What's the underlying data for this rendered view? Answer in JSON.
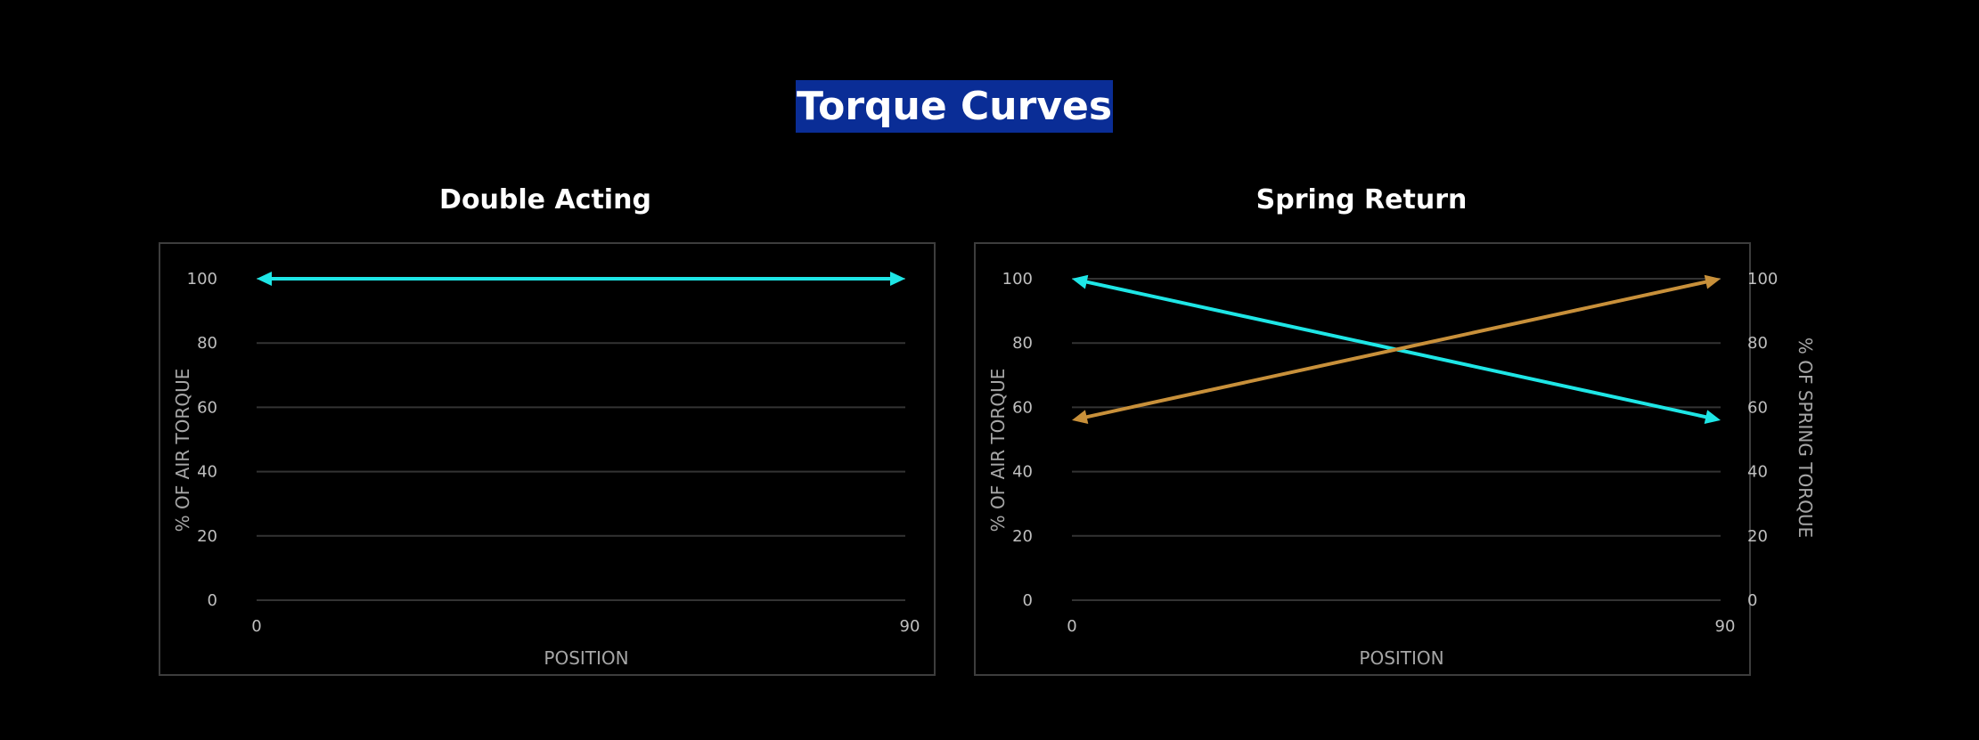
{
  "title": "Torque Curves",
  "colors": {
    "title_bg": "#0a2d96",
    "air_torque": "#1ee6e6",
    "spring_torque": "#c8903a",
    "gridline": "#333333",
    "frame": "#3d3d3d"
  },
  "chart_data": [
    {
      "type": "line",
      "title": "Double Acting",
      "xlabel": "POSITION",
      "ylabel": "% OF AIR TORQUE",
      "xlim": [
        0,
        90
      ],
      "ylim": [
        0,
        100
      ],
      "x_ticks": [
        "0",
        "90"
      ],
      "y_ticks": [
        "0",
        "20",
        "40",
        "60",
        "80",
        "100"
      ],
      "grid": true,
      "arrows": "both-ends",
      "series": [
        {
          "x": [
            0,
            90
          ],
          "y": [
            100,
            100
          ],
          "color": "#1ee6e6",
          "axis": "left"
        }
      ]
    },
    {
      "type": "line",
      "title": "Spring Return",
      "xlabel": "POSITION",
      "ylabel": "% OF AIR TORQUE",
      "y2label": "% OF SPRING TORQUE",
      "xlim": [
        0,
        90
      ],
      "ylim": [
        0,
        100
      ],
      "y2lim": [
        0,
        100
      ],
      "x_ticks": [
        "0",
        "90"
      ],
      "y_ticks": [
        "0",
        "20",
        "40",
        "60",
        "80",
        "100"
      ],
      "y2_ticks": [
        "0",
        "20",
        "40",
        "60",
        "80",
        "100"
      ],
      "grid": true,
      "arrows": "both-ends",
      "series": [
        {
          "x": [
            0,
            90
          ],
          "y": [
            100,
            56
          ],
          "color": "#1ee6e6",
          "axis": "left"
        },
        {
          "x": [
            0,
            90
          ],
          "y": [
            56,
            100
          ],
          "color": "#c8903a",
          "axis": "right"
        }
      ]
    }
  ]
}
